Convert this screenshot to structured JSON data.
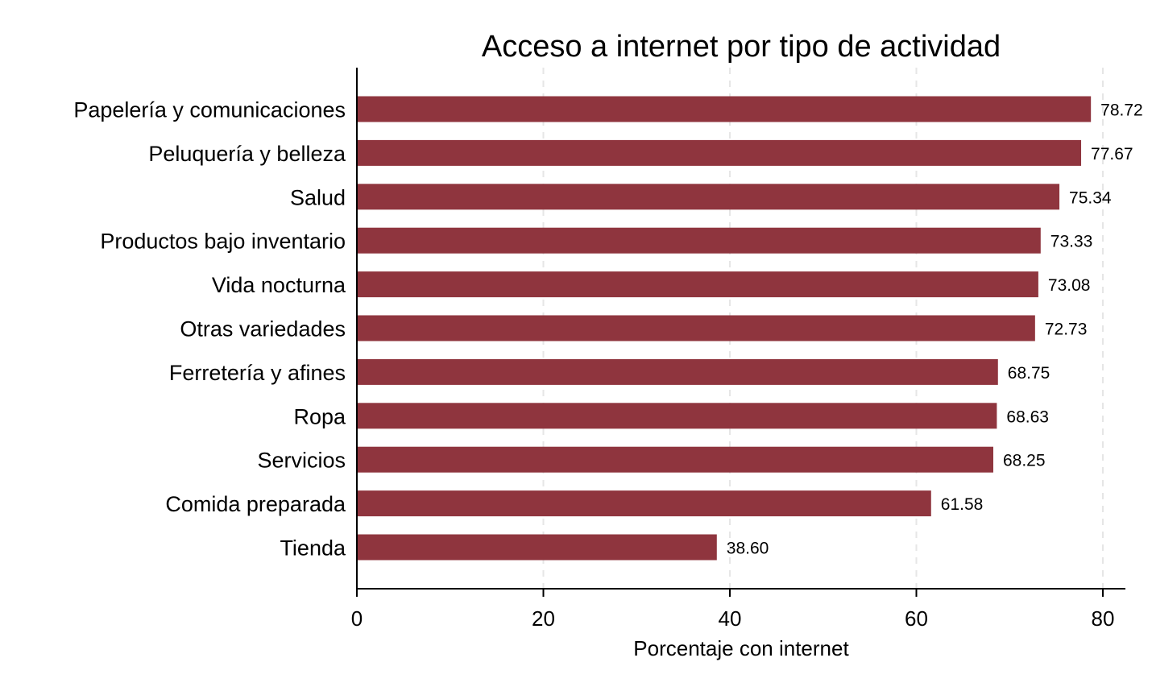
{
  "chart_data": {
    "type": "bar",
    "orientation": "horizontal",
    "title": "Acceso a internet por tipo de actividad",
    "xlabel": "Porcentaje con internet",
    "ylabel": "",
    "categories": [
      "Papelería y comunicaciones",
      "Peluquería y belleza",
      "Salud",
      "Productos bajo inventario",
      "Vida nocturna",
      "Otras variedades",
      "Ferretería y afines",
      "Ropa",
      "Servicios",
      "Comida preparada",
      "Tienda"
    ],
    "values": [
      78.72,
      77.67,
      75.34,
      73.33,
      73.08,
      72.73,
      68.75,
      68.63,
      68.25,
      61.58,
      38.6
    ],
    "value_labels": [
      "78.72",
      "77.67",
      "75.34",
      "73.33",
      "73.08",
      "72.73",
      "68.75",
      "68.63",
      "68.25",
      "61.58",
      "38.60"
    ],
    "xlim": [
      0,
      80
    ],
    "xticks": [
      0,
      20,
      40,
      60,
      80
    ],
    "xtick_labels": [
      "0",
      "20",
      "40",
      "60",
      "80"
    ],
    "grid": "vertical dashed",
    "legend": "none",
    "colors": {
      "bar": "#8f353e",
      "grid": "#e6e6e6",
      "axis": "#000000"
    }
  }
}
